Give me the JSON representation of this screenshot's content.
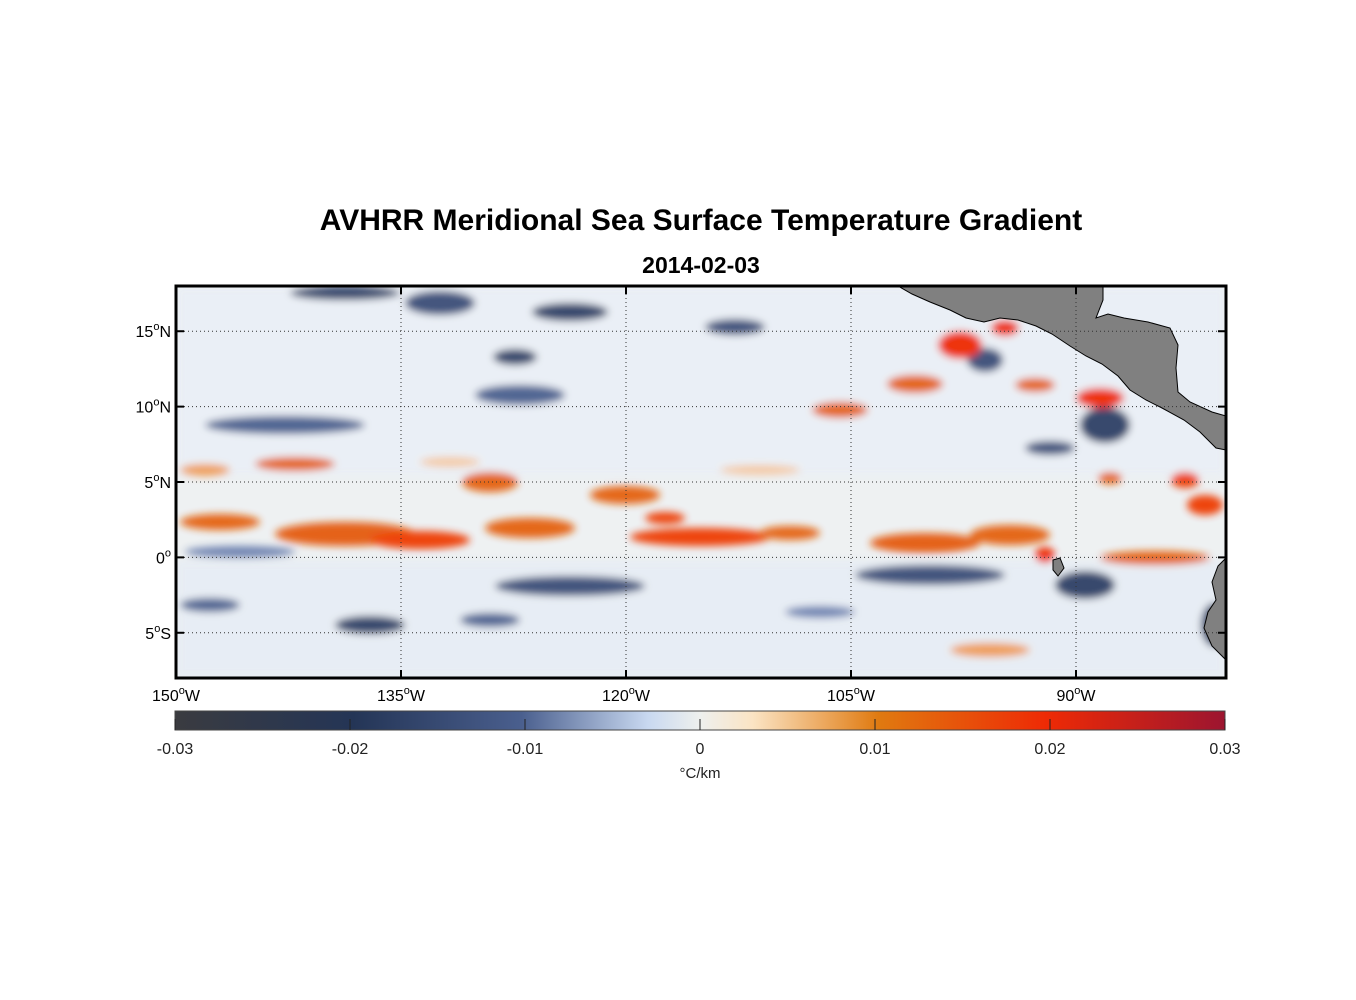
{
  "title": "AVHRR Meridional Sea Surface Temperature Gradient",
  "subtitle": "2014-02-03",
  "map": {
    "lon_range": [
      -150,
      -80
    ],
    "lat_range": [
      -8,
      18
    ],
    "grid": true,
    "land_color": "#808080",
    "y_ticks": [
      {
        "value": 15,
        "label": "15",
        "sup": "o",
        "hemi": "N"
      },
      {
        "value": 10,
        "label": "10",
        "sup": "o",
        "hemi": "N"
      },
      {
        "value": 5,
        "label": "5",
        "sup": "o",
        "hemi": "N"
      },
      {
        "value": 0,
        "label": "0",
        "sup": "o",
        "hemi": ""
      },
      {
        "value": -5,
        "label": "5",
        "sup": "o",
        "hemi": "S"
      }
    ],
    "x_ticks": [
      {
        "value": -150,
        "label": "150",
        "sup": "o",
        "hemi": "W"
      },
      {
        "value": -135,
        "label": "135",
        "sup": "o",
        "hemi": "W"
      },
      {
        "value": -120,
        "label": "120",
        "sup": "o",
        "hemi": "W"
      },
      {
        "value": -105,
        "label": "105",
        "sup": "o",
        "hemi": "W"
      },
      {
        "value": -90,
        "label": "90",
        "sup": "o",
        "hemi": "W"
      }
    ]
  },
  "colorbar": {
    "range": [
      -0.03,
      0.03
    ],
    "ticks": [
      -0.03,
      -0.02,
      -0.01,
      0,
      0.01,
      0.02,
      0.03
    ],
    "tick_labels": [
      "-0.03",
      "-0.02",
      "-0.01",
      "0",
      "0.01",
      "0.02",
      "0.03"
    ],
    "unit_label": "°C/km",
    "colors": [
      "#3a3b40",
      "#243556",
      "#4a5f8e",
      "#c8d8f0",
      "#eef0ee",
      "#fbe4c4",
      "#e07a10",
      "#ee2a05",
      "#9c1530"
    ]
  }
}
